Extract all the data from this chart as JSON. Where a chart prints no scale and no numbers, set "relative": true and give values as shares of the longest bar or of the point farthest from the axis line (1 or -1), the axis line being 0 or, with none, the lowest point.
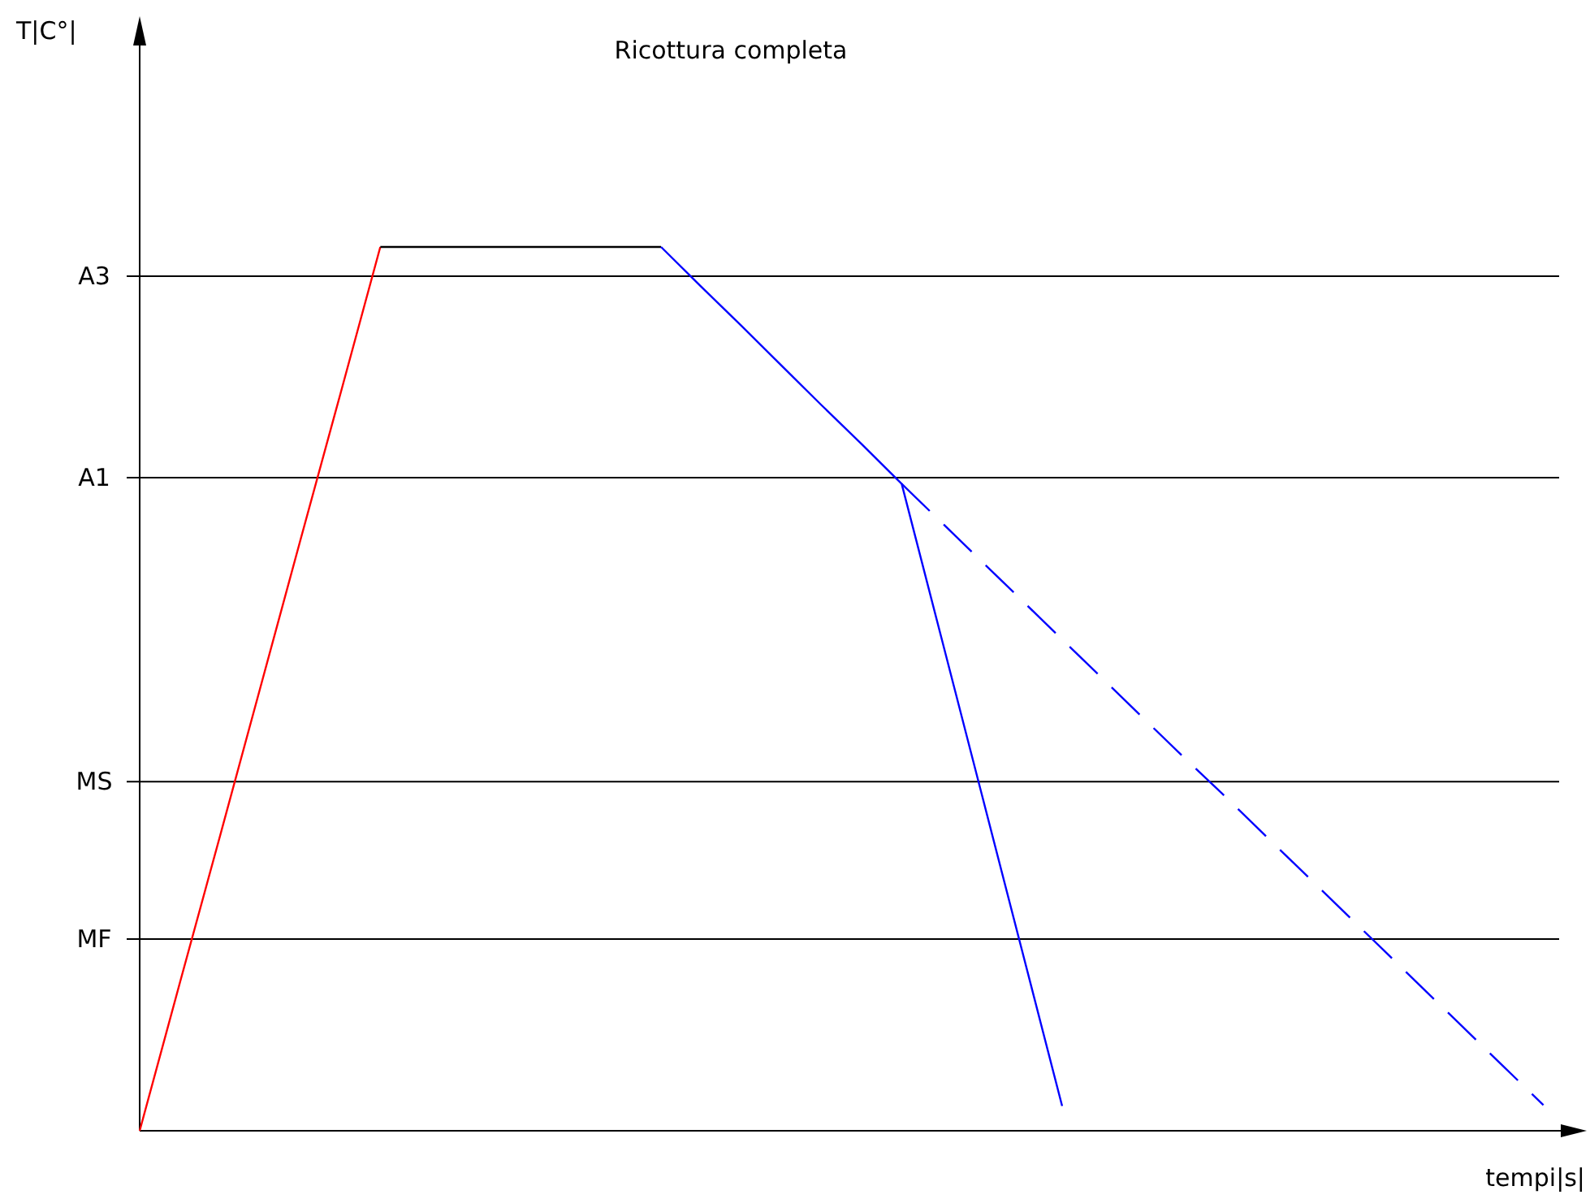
{
  "chart_data": {
    "type": "line",
    "title": "Ricottura completa",
    "xlabel": "tempi|s|",
    "annotations": [
      "T|C°|"
    ],
    "relative": true,
    "ref_lines": [
      {
        "axis": "y",
        "value": 0.967,
        "label": "A3",
        "color": "#000000"
      },
      {
        "axis": "y",
        "value": 0.739,
        "label": "A1",
        "color": "#000000"
      },
      {
        "axis": "y",
        "value": 0.395,
        "label": "MS",
        "color": "#000000"
      },
      {
        "axis": "y",
        "value": 0.217,
        "label": "MF",
        "color": "#000000"
      }
    ],
    "categories": [
      null,
      null,
      null,
      null,
      null,
      null,
      null,
      null,
      null,
      null,
      null,
      null,
      null,
      null,
      null,
      null,
      null,
      null,
      null,
      null,
      null,
      null,
      null,
      null,
      null,
      null,
      null,
      null,
      null,
      null,
      null,
      null,
      null,
      null,
      null,
      null
    ],
    "series": [
      {
        "color": "#ff0000",
        "values": [
          0,
          0.167,
          0.333,
          0.5,
          0.667,
          0.833,
          1,
          null,
          null,
          null,
          null,
          null,
          null,
          null,
          null,
          null,
          null,
          null,
          null,
          null,
          null,
          null,
          null,
          null,
          null,
          null,
          null,
          null,
          null,
          null,
          null,
          null,
          null,
          null,
          null,
          null
        ]
      },
      {
        "color": "#000000",
        "values": [
          null,
          null,
          null,
          null,
          null,
          null,
          1,
          1,
          1,
          1,
          1,
          1,
          1,
          1,
          null,
          null,
          null,
          null,
          null,
          null,
          null,
          null,
          null,
          null,
          null,
          null,
          null,
          null,
          null,
          null,
          null,
          null,
          null,
          null,
          null,
          null
        ]
      },
      {
        "color": "#0000ff",
        "values": [
          null,
          null,
          null,
          null,
          null,
          null,
          null,
          null,
          null,
          null,
          null,
          null,
          null,
          1,
          0.955,
          0.911,
          0.866,
          0.821,
          0.777,
          0.732,
          0.556,
          0.38,
          0.204,
          0.028,
          null,
          null,
          null,
          null,
          null,
          null,
          null,
          null,
          null,
          null,
          null,
          null
        ]
      },
      {
        "color": "#0000ff",
        "line_style": "dashed",
        "values": [
          null,
          null,
          null,
          null,
          null,
          null,
          null,
          null,
          null,
          null,
          null,
          null,
          null,
          null,
          null,
          null,
          null,
          null,
          null,
          0.732,
          0.688,
          0.644,
          0.6,
          0.556,
          0.512,
          0.468,
          0.424,
          0.381,
          0.337,
          0.293,
          0.249,
          0.205,
          0.161,
          0.117,
          0.073,
          0.029
        ]
      }
    ]
  }
}
